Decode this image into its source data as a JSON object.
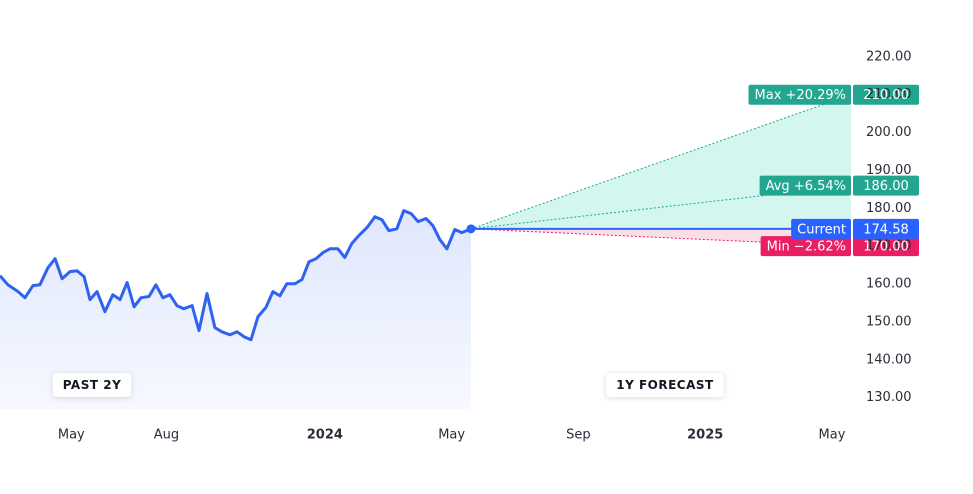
{
  "chart_data": {
    "type": "line",
    "xlim": [
      0,
      26.85
    ],
    "ylim": [
      127,
      230
    ],
    "xticks": [
      {
        "value": 2.25,
        "label": "May"
      },
      {
        "value": 5.25,
        "label": "Aug"
      },
      {
        "value": 10.25,
        "label": "2024"
      },
      {
        "value": 14.25,
        "label": "May"
      },
      {
        "value": 18.25,
        "label": "Sep"
      },
      {
        "value": 22.25,
        "label": "2025"
      },
      {
        "value": 26.25,
        "label": "May"
      }
    ],
    "yticks": [
      {
        "value": 130,
        "label": "130.00"
      },
      {
        "value": 140,
        "label": "140.00"
      },
      {
        "value": 150,
        "label": "150.00"
      },
      {
        "value": 160,
        "label": "160.00"
      },
      {
        "value": 170,
        "label": "170.00"
      },
      {
        "value": 180,
        "label": "180.00"
      },
      {
        "value": 190,
        "label": "190.00"
      },
      {
        "value": 200,
        "label": "200.00"
      },
      {
        "value": 210,
        "label": "210.00"
      },
      {
        "value": 220,
        "label": "220.00"
      }
    ],
    "series": [
      {
        "color": "#2f62f0",
        "x": [
          0,
          0.25,
          0.57,
          0.79,
          1.04,
          1.26,
          1.51,
          1.74,
          1.96,
          2.21,
          2.43,
          2.65,
          2.84,
          3.06,
          3.31,
          3.56,
          3.79,
          4.01,
          4.23,
          4.45,
          4.7,
          4.92,
          5.14,
          5.36,
          5.58,
          5.8,
          6.06,
          6.28,
          6.53,
          6.78,
          7.0,
          7.26,
          7.48,
          7.7,
          7.92,
          8.14,
          8.39,
          8.61,
          8.83,
          9.05,
          9.31,
          9.53,
          9.75,
          9.97,
          10.19,
          10.41,
          10.66,
          10.88,
          11.1,
          11.32,
          11.58,
          11.83,
          12.05,
          12.27,
          12.52,
          12.74,
          12.97,
          13.19,
          13.44,
          13.66,
          13.88,
          14.1,
          14.35,
          14.57,
          14.86
        ],
        "values": [
          162.2,
          159.8,
          158,
          156.4,
          159.6,
          159.8,
          164.3,
          166.7,
          161.4,
          163.3,
          163.5,
          162,
          155.9,
          158,
          152.7,
          157.2,
          155.9,
          160.4,
          154,
          156.4,
          156.7,
          159.8,
          156.4,
          157.2,
          154.3,
          153.5,
          154.3,
          147.7,
          157.5,
          148.5,
          147.4,
          146.6,
          147.4,
          146.1,
          145.3,
          151.4,
          153.8,
          158,
          156.9,
          160.1,
          160.1,
          161.2,
          165.9,
          166.7,
          168.3,
          169.3,
          169.3,
          167,
          170.7,
          172.8,
          174.9,
          177.8,
          177,
          174.1,
          174.6,
          179.4,
          178.6,
          176.5,
          177.3,
          175.4,
          171.7,
          169.3,
          174.4,
          173.6,
          174.58
        ]
      }
    ],
    "current": {
      "name": "Current",
      "value": 174.58,
      "color": "#2962ff"
    },
    "forecasts": [
      {
        "name": "Max +20.29%",
        "value": 210,
        "value_label": "210.00",
        "color": "#22a68f"
      },
      {
        "name": "Avg +6.54%",
        "value": 186,
        "value_label": "186.00",
        "color": "#22a68f"
      },
      {
        "name": "Min −2.62%",
        "value": 170,
        "value_label": "170.00",
        "color": "#e91e63"
      }
    ],
    "period_labels": [
      "PAST 2Y",
      "1Y FORECAST"
    ]
  }
}
